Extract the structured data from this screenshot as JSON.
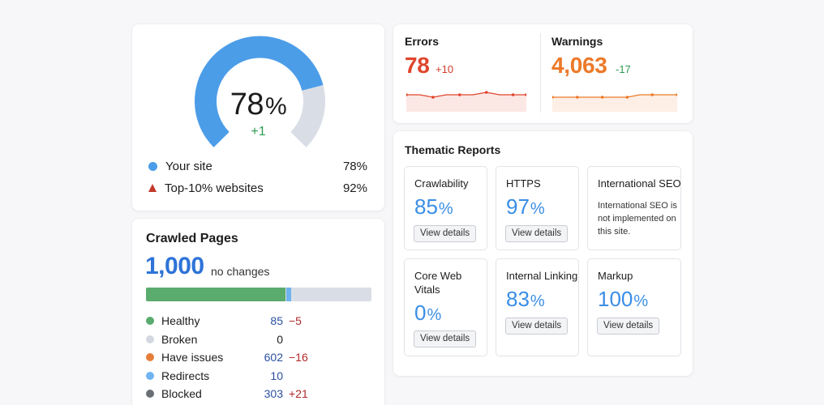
{
  "site_health": {
    "score": "78",
    "score_unit": "%",
    "score_fraction": 0.78,
    "delta": "+1",
    "legend": [
      {
        "label": "Your site",
        "value": "78%",
        "icon": "circle-dot-icon",
        "color": "#4c9de8"
      },
      {
        "label": "Top-10% websites",
        "value": "92%",
        "icon": "triangle-marker-icon",
        "color": "#c0392b"
      }
    ],
    "benchmark_fraction": 0.92,
    "colors": {
      "fill": "#4c9de8",
      "track": "#d9dee6"
    }
  },
  "crawled_pages": {
    "title": "Crawled Pages",
    "total": "1,000",
    "note": "no changes",
    "items": [
      {
        "label": "Healthy",
        "value": "85",
        "delta": "−5",
        "color": "#5aab6e"
      },
      {
        "label": "Broken",
        "value": "0",
        "delta": "",
        "color": "#d3d8e0"
      },
      {
        "label": "Have issues",
        "value": "602",
        "delta": "−16",
        "color": "#e67e3a"
      },
      {
        "label": "Redirects",
        "value": "10",
        "delta": "",
        "color": "#6fb3f0"
      },
      {
        "label": "Blocked",
        "value": "303",
        "delta": "+21",
        "color": "#6a6f76"
      }
    ],
    "bar_fractions": {
      "healthy": 0.62,
      "redirects": 0.02,
      "rest": 0.36
    }
  },
  "issues": {
    "errors": {
      "title": "Errors",
      "value": "78",
      "delta": "+10",
      "color": "#e0452c",
      "delta_color": "#d23b2a",
      "series": [
        5,
        5,
        4,
        5,
        5,
        5,
        6,
        5,
        5,
        5
      ]
    },
    "warnings": {
      "title": "Warnings",
      "value": "4,063",
      "delta": "-17",
      "color": "#ec7a2a",
      "delta_color": "#2c9b4f",
      "series": [
        4,
        4,
        4,
        4,
        4,
        4,
        4,
        5,
        5,
        5,
        5
      ]
    }
  },
  "thematic": {
    "title": "Thematic Reports",
    "button_label": "View details",
    "tiles": [
      {
        "name": "Crawlability",
        "score": "85",
        "unit": "%"
      },
      {
        "name": "HTTPS",
        "score": "97",
        "unit": "%"
      },
      {
        "name": "International SEO",
        "description": "International SEO is not implemented on this site."
      },
      {
        "name": "Core Web Vitals",
        "score": "0",
        "unit": "%"
      },
      {
        "name": "Internal Linking",
        "score": "83",
        "unit": "%"
      },
      {
        "name": "Markup",
        "score": "100",
        "unit": "%"
      }
    ]
  }
}
